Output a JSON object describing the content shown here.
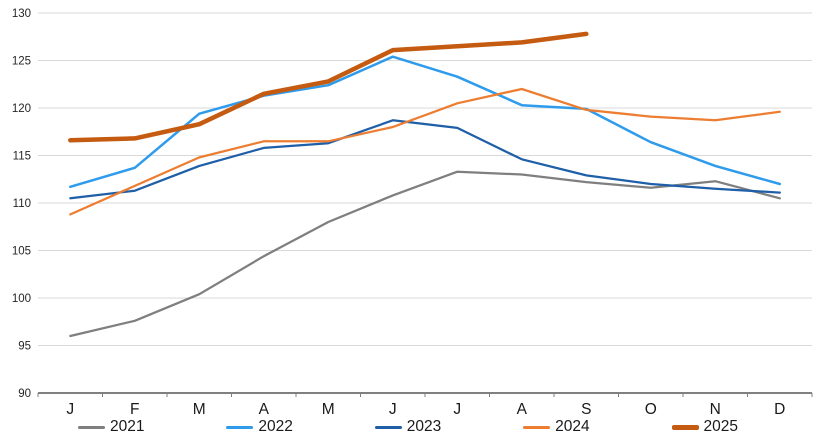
{
  "chart_data": {
    "type": "line",
    "title": "",
    "xlabel": "",
    "ylabel": "",
    "categories": [
      "J",
      "F",
      "M",
      "A",
      "M",
      "J",
      "J",
      "A",
      "S",
      "O",
      "N",
      "D"
    ],
    "y_axis": {
      "min": 90,
      "max": 130,
      "step": 5,
      "tick_labels": [
        "90",
        "95",
        "100",
        "105",
        "110",
        "115",
        "120",
        "125",
        "130"
      ]
    },
    "grid": true,
    "legend_position": "bottom",
    "series": [
      {
        "name": "2021",
        "color": "#7F7F7F",
        "line_width": 2.25,
        "values": [
          96.0,
          97.6,
          100.4,
          104.4,
          108.0,
          110.8,
          113.3,
          113.0,
          112.2,
          111.6,
          112.3,
          110.5
        ]
      },
      {
        "name": "2022",
        "color": "#2E9BEC",
        "line_width": 2.5,
        "values": [
          111.7,
          113.7,
          119.4,
          121.3,
          122.4,
          125.4,
          123.3,
          120.3,
          119.9,
          116.4,
          113.9,
          112.0
        ]
      },
      {
        "name": "2023",
        "color": "#1F5FA8",
        "line_width": 2.25,
        "values": [
          110.5,
          111.3,
          113.9,
          115.8,
          116.3,
          118.7,
          117.9,
          114.6,
          112.9,
          112.0,
          111.5,
          111.1
        ]
      },
      {
        "name": "2024",
        "color": "#ED7D31",
        "line_width": 2.25,
        "values": [
          108.8,
          111.8,
          114.8,
          116.5,
          116.5,
          118.0,
          120.5,
          122.0,
          119.8,
          119.1,
          118.7,
          119.6
        ]
      },
      {
        "name": "2025",
        "color": "#C55A11",
        "line_width": 4.5,
        "values": [
          116.6,
          116.8,
          118.3,
          121.5,
          122.8,
          126.1,
          126.5,
          126.9,
          127.8,
          null,
          null,
          null
        ]
      }
    ]
  },
  "colors": {
    "background": "#FFFFFF",
    "gridline": "#D9D9D9",
    "axis_line": "#000000",
    "tick_mark": "#7F7F7F",
    "axis_label": "#262626"
  }
}
